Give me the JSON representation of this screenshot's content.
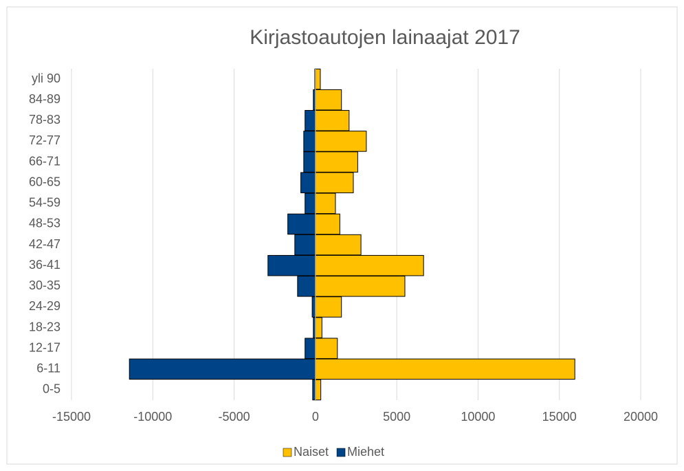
{
  "chart_data": {
    "type": "bar",
    "orientation": "horizontal",
    "title": "Kirjastoautojen lainaajat 2017",
    "categories": [
      "0-5",
      "6-11",
      "12-17",
      "18-23",
      "24-29",
      "30-35",
      "36-41",
      "42-47",
      "48-53",
      "54-59",
      "60-65",
      "66-71",
      "72-77",
      "78-83",
      "84-89",
      "yli 90"
    ],
    "series": [
      {
        "name": "Naiset",
        "color": "#ffc000",
        "values": [
          330,
          15950,
          1350,
          400,
          1600,
          5500,
          6650,
          2800,
          1500,
          1230,
          2330,
          2600,
          3130,
          2070,
          1600,
          300
        ]
      },
      {
        "name": "Miehet",
        "color": "#004488",
        "values": [
          -170,
          -11440,
          -640,
          -130,
          -200,
          -1100,
          -2920,
          -1270,
          -1700,
          -640,
          -900,
          -720,
          -720,
          -640,
          -130,
          -40
        ]
      }
    ],
    "xlim": [
      -15000,
      20000
    ],
    "xticks": [
      -15000,
      -10000,
      -5000,
      0,
      5000,
      10000,
      15000,
      20000
    ],
    "grid": true,
    "legend": "bottom"
  }
}
